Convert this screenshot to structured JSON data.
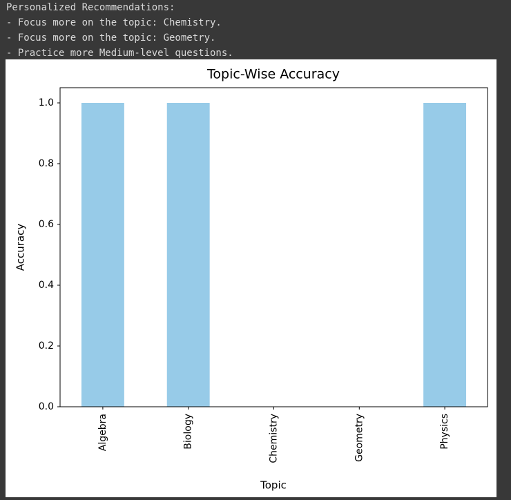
{
  "console_output": {
    "lines": [
      "Personalized Recommendations:",
      "- Focus more on the topic: Chemistry.",
      "- Focus more on the topic: Geometry.",
      "- Practice more Medium-level questions."
    ]
  },
  "chart_data": {
    "type": "bar",
    "title": "Topic-Wise Accuracy",
    "x_label": "Topic",
    "y_label": "Accuracy",
    "categories": [
      "Algebra",
      "Biology",
      "Chemistry",
      "Geometry",
      "Physics"
    ],
    "values": [
      1,
      1,
      0,
      0,
      1
    ],
    "color": "#97cbe8",
    "ylim": [
      0,
      1.05
    ],
    "yticks": [
      {
        "value": 0,
        "label": "0.0"
      },
      0.2,
      0.4,
      0.6,
      0.8,
      {
        "value": 1,
        "label": "1.0"
      }
    ],
    "grid": false
  }
}
